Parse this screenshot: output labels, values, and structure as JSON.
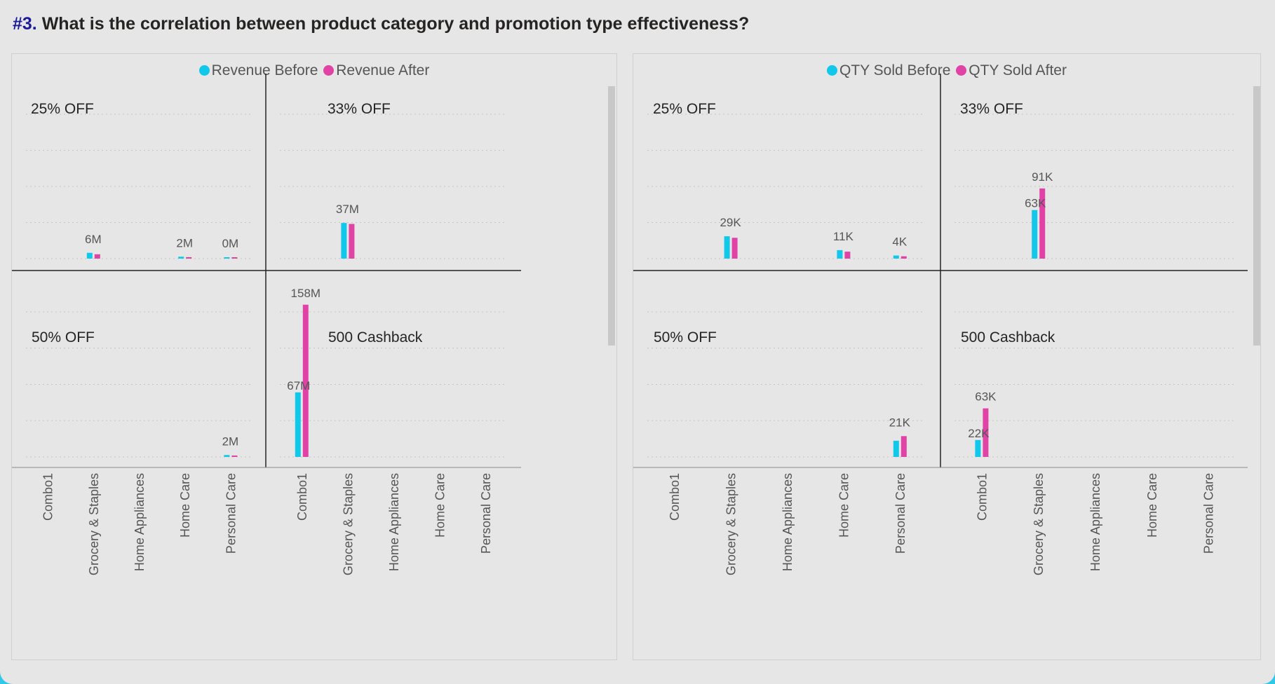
{
  "page": {
    "title_number": "#3.",
    "title_text": " What is the correlation between product category and promotion type effectiveness?"
  },
  "colors": {
    "before": "#12c8ea",
    "after": "#e042a6",
    "divider": "#252423",
    "grid": "#c4c4c4",
    "text": "#555555"
  },
  "chart_data": [
    {
      "type": "bar",
      "legend": [
        "Revenue Before",
        "Revenue After"
      ],
      "categories": [
        "Combo1",
        "Grocery & Staples",
        "Home Appliances",
        "Home Care",
        "Personal Care"
      ],
      "ylim": [
        0,
        160
      ],
      "panels": [
        {
          "title": "25% OFF",
          "series": [
            {
              "name": "Revenue Before",
              "values": [
                null,
                6,
                null,
                2,
                0.9
              ]
            },
            {
              "name": "Revenue After",
              "values": [
                null,
                4.5,
                null,
                1.5,
                1
              ]
            }
          ],
          "labels": [
            null,
            "6M",
            null,
            "2M",
            "0M"
          ]
        },
        {
          "title": "33% OFF",
          "series": [
            {
              "name": "Revenue Before",
              "values": [
                null,
                37,
                null,
                null,
                null
              ]
            },
            {
              "name": "Revenue After",
              "values": [
                null,
                36,
                null,
                null,
                null
              ]
            }
          ],
          "labels": [
            null,
            "37M",
            null,
            null,
            null
          ]
        },
        {
          "title": "50% OFF",
          "series": [
            {
              "name": "Revenue Before",
              "values": [
                null,
                null,
                null,
                null,
                2
              ]
            },
            {
              "name": "Revenue After",
              "values": [
                null,
                null,
                null,
                null,
                1.5
              ]
            }
          ],
          "labels": [
            null,
            null,
            null,
            null,
            "2M"
          ]
        },
        {
          "title": "500 Cashback",
          "series": [
            {
              "name": "Revenue Before",
              "values": [
                67,
                null,
                null,
                null,
                null
              ]
            },
            {
              "name": "Revenue After",
              "values": [
                158,
                null,
                null,
                null,
                null
              ]
            }
          ],
          "labels": [
            [
              "67M",
              "158M"
            ],
            null,
            null,
            null,
            null
          ]
        }
      ]
    },
    {
      "type": "bar",
      "legend": [
        "QTY Sold Before",
        "QTY Sold After"
      ],
      "categories": [
        "Combo1",
        "Grocery & Staples",
        "Home Appliances",
        "Home Care",
        "Personal Care"
      ],
      "ylim": [
        0,
        200
      ],
      "panels": [
        {
          "title": "25% OFF",
          "series": [
            {
              "name": "QTY Sold Before",
              "values": [
                null,
                29,
                null,
                11,
                4
              ]
            },
            {
              "name": "QTY Sold After",
              "values": [
                null,
                27,
                null,
                9,
                3
              ]
            }
          ],
          "labels": [
            null,
            "29K",
            null,
            "11K",
            "4K"
          ]
        },
        {
          "title": "33% OFF",
          "series": [
            {
              "name": "QTY Sold Before",
              "values": [
                null,
                63,
                null,
                null,
                null
              ]
            },
            {
              "name": "QTY Sold After",
              "values": [
                null,
                91,
                null,
                null,
                null
              ]
            }
          ],
          "labels": [
            null,
            [
              "63K",
              "91K"
            ],
            null,
            null,
            null
          ]
        },
        {
          "title": "50% OFF",
          "series": [
            {
              "name": "QTY Sold Before",
              "values": [
                null,
                null,
                null,
                null,
                21
              ]
            },
            {
              "name": "QTY Sold After",
              "values": [
                null,
                null,
                null,
                null,
                27
              ]
            }
          ],
          "labels": [
            null,
            null,
            null,
            null,
            "21K"
          ]
        },
        {
          "title": "500 Cashback",
          "series": [
            {
              "name": "QTY Sold Before",
              "values": [
                22,
                null,
                null,
                null,
                null
              ]
            },
            {
              "name": "QTY Sold After",
              "values": [
                63,
                null,
                null,
                null,
                null
              ]
            }
          ],
          "labels": [
            [
              "22K",
              "63K"
            ],
            null,
            null,
            null,
            null
          ]
        }
      ]
    }
  ]
}
